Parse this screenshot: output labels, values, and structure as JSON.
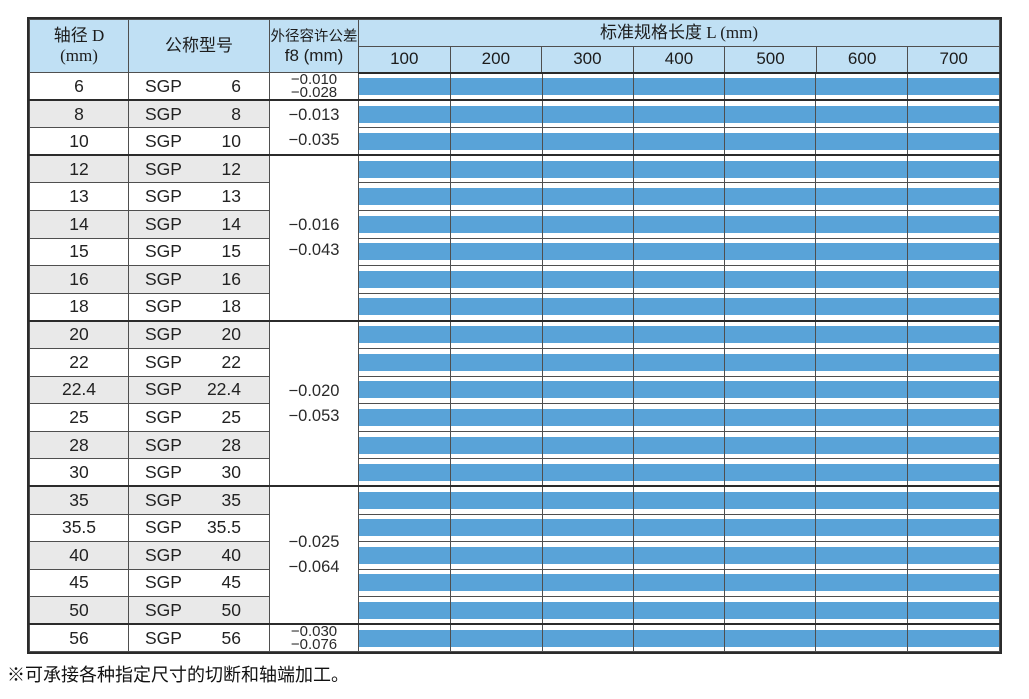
{
  "colors": {
    "bar_blue": "#59A3D8",
    "header_blue": "#C0E0F4",
    "shaded_row_gray": "#E9E9E9",
    "grid_line": "#4F4F4F"
  },
  "table": {
    "headers": {
      "diameter_line1": "轴径 D",
      "diameter_line2": "(mm)",
      "model": "公称型号",
      "tolerance_line1": "外径容许公差",
      "tolerance_line2": "f8 (mm)",
      "length_title": "标准规格长度 L (mm)",
      "length_columns": [
        "100",
        "200",
        "300",
        "400",
        "500",
        "600",
        "700"
      ]
    },
    "tolerance_groups": [
      {
        "diameters": [
          "6"
        ],
        "upper": "−0.010",
        "lower": "−0.028"
      },
      {
        "diameters": [
          "8",
          "10"
        ],
        "upper": "−0.013",
        "lower": "−0.035"
      },
      {
        "diameters": [
          "12",
          "13",
          "14",
          "15",
          "16",
          "18"
        ],
        "upper": "−0.016",
        "lower": "−0.043"
      },
      {
        "diameters": [
          "20",
          "22",
          "22.4",
          "25",
          "28",
          "30"
        ],
        "upper": "−0.020",
        "lower": "−0.053"
      },
      {
        "diameters": [
          "35",
          "35.5",
          "40",
          "45",
          "50"
        ],
        "upper": "−0.025",
        "lower": "−0.064"
      },
      {
        "diameters": [
          "56"
        ],
        "upper": "−0.030",
        "lower": "−0.076"
      }
    ],
    "rows": [
      {
        "diameter": "6",
        "model_prefix": "SGP",
        "model_size": "6",
        "bar_range_mm": [
          100,
          700
        ]
      },
      {
        "diameter": "8",
        "model_prefix": "SGP",
        "model_size": "8",
        "bar_range_mm": [
          100,
          700
        ]
      },
      {
        "diameter": "10",
        "model_prefix": "SGP",
        "model_size": "10",
        "bar_range_mm": [
          100,
          700
        ]
      },
      {
        "diameter": "12",
        "model_prefix": "SGP",
        "model_size": "12",
        "bar_range_mm": [
          100,
          700
        ]
      },
      {
        "diameter": "13",
        "model_prefix": "SGP",
        "model_size": "13",
        "bar_range_mm": [
          100,
          700
        ]
      },
      {
        "diameter": "14",
        "model_prefix": "SGP",
        "model_size": "14",
        "bar_range_mm": [
          100,
          700
        ]
      },
      {
        "diameter": "15",
        "model_prefix": "SGP",
        "model_size": "15",
        "bar_range_mm": [
          100,
          700
        ]
      },
      {
        "diameter": "16",
        "model_prefix": "SGP",
        "model_size": "16",
        "bar_range_mm": [
          100,
          700
        ]
      },
      {
        "diameter": "18",
        "model_prefix": "SGP",
        "model_size": "18",
        "bar_range_mm": [
          100,
          700
        ]
      },
      {
        "diameter": "20",
        "model_prefix": "SGP",
        "model_size": "20",
        "bar_range_mm": [
          100,
          700
        ]
      },
      {
        "diameter": "22",
        "model_prefix": "SGP",
        "model_size": "22",
        "bar_range_mm": [
          100,
          700
        ]
      },
      {
        "diameter": "22.4",
        "model_prefix": "SGP",
        "model_size": "22.4",
        "bar_range_mm": [
          100,
          700
        ]
      },
      {
        "diameter": "25",
        "model_prefix": "SGP",
        "model_size": "25",
        "bar_range_mm": [
          100,
          700
        ]
      },
      {
        "diameter": "28",
        "model_prefix": "SGP",
        "model_size": "28",
        "bar_range_mm": [
          100,
          700
        ]
      },
      {
        "diameter": "30",
        "model_prefix": "SGP",
        "model_size": "30",
        "bar_range_mm": [
          100,
          700
        ]
      },
      {
        "diameter": "35",
        "model_prefix": "SGP",
        "model_size": "35",
        "bar_range_mm": [
          100,
          700
        ]
      },
      {
        "diameter": "35.5",
        "model_prefix": "SGP",
        "model_size": "35.5",
        "bar_range_mm": [
          100,
          700
        ]
      },
      {
        "diameter": "40",
        "model_prefix": "SGP",
        "model_size": "40",
        "bar_range_mm": [
          100,
          700
        ]
      },
      {
        "diameter": "45",
        "model_prefix": "SGP",
        "model_size": "45",
        "bar_range_mm": [
          100,
          700
        ]
      },
      {
        "diameter": "50",
        "model_prefix": "SGP",
        "model_size": "50",
        "bar_range_mm": [
          100,
          700
        ]
      },
      {
        "diameter": "56",
        "model_prefix": "SGP",
        "model_size": "56",
        "bar_range_mm": [
          100,
          700
        ]
      }
    ]
  },
  "footnote": "※可承接各种指定尺寸的切断和轴端加工。"
}
